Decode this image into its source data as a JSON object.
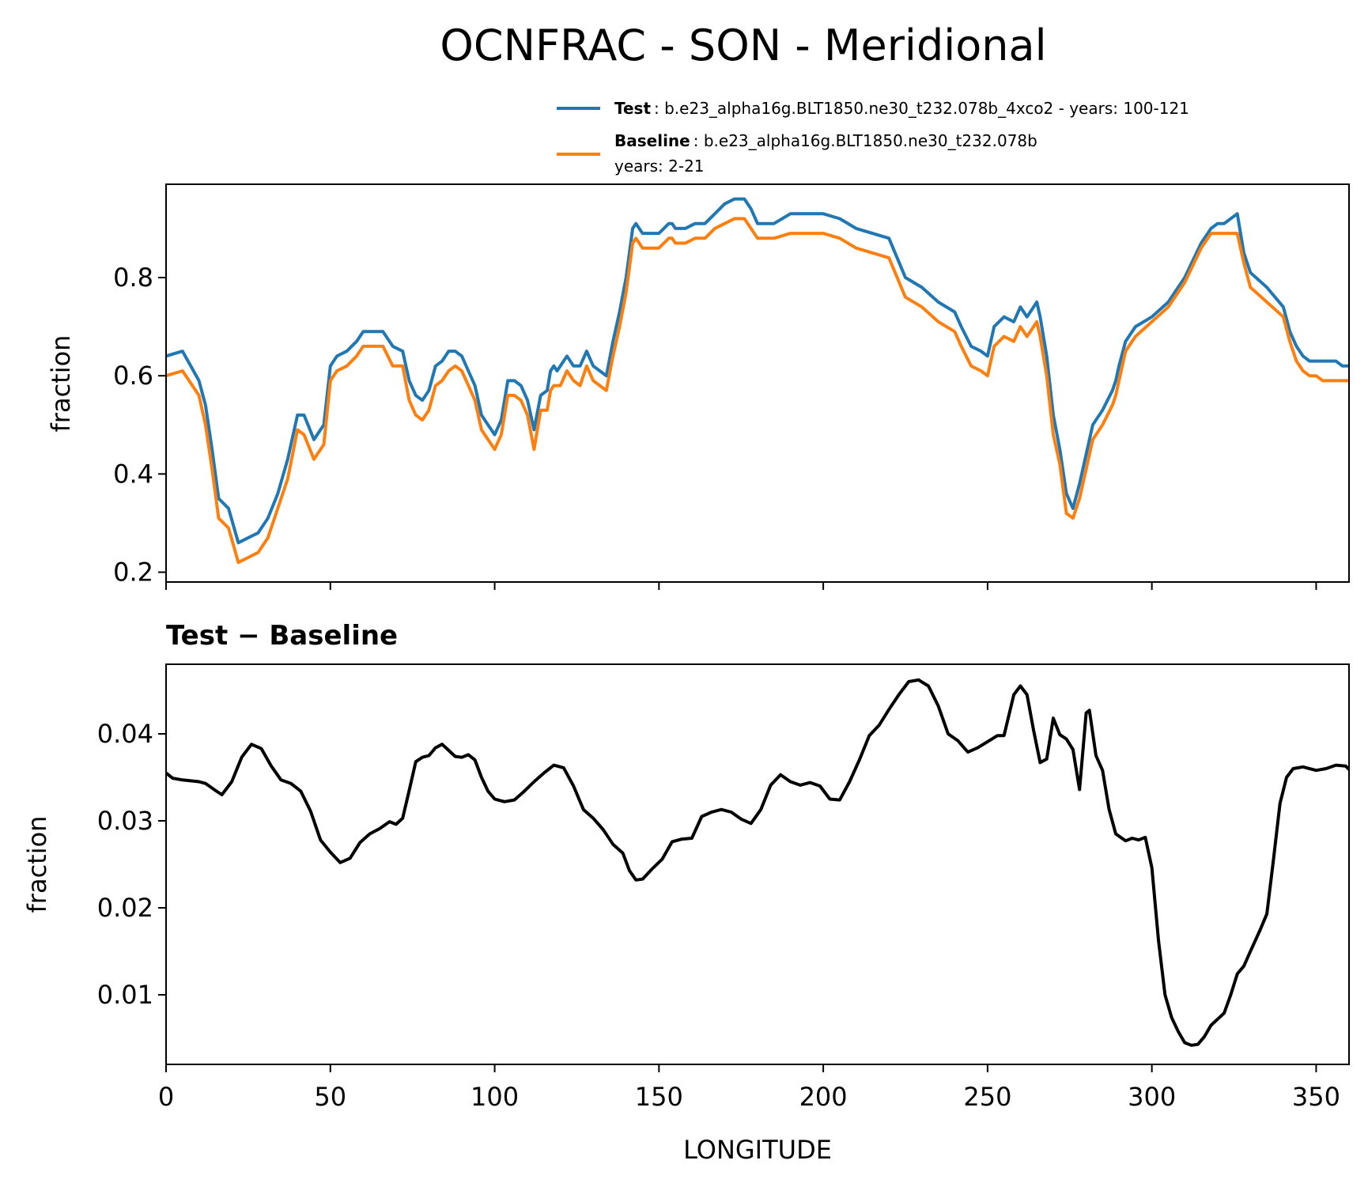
{
  "title": "OCNFRAC - SON - Meridional",
  "colors": {
    "test": "#1f77b4",
    "baseline": "#ff7f0e",
    "diff": "#000000"
  },
  "legend": {
    "test_bold": "Test",
    "test_text": ": b.e23_alpha16g.BLT1850.ne30_t232.078b_4xco2 - years: 100-121",
    "baseline_bold": "Baseline",
    "baseline_text": ": b.e23_alpha16g.BLT1850.ne30_t232.078b",
    "baseline_text2": "years: 2-21"
  },
  "top": {
    "ylabel": "fraction"
  },
  "bottom": {
    "title": "Test − Baseline",
    "ylabel": "fraction",
    "xlabel": "LONGITUDE"
  },
  "chart_data": [
    {
      "type": "line",
      "title": "",
      "ylabel": "fraction",
      "xlim": [
        0,
        360
      ],
      "ylim": [
        0.18,
        0.99
      ],
      "yticks": [
        0.2,
        0.4,
        0.6,
        0.8
      ],
      "xticks": [
        0,
        50,
        100,
        150,
        200,
        250,
        300,
        350
      ],
      "x": [
        0,
        5,
        10,
        12,
        14,
        16,
        19,
        22,
        25,
        28,
        31,
        34,
        37,
        40,
        42,
        45,
        48,
        50,
        52,
        55,
        58,
        60,
        63,
        66,
        69,
        72,
        74,
        76,
        78,
        80,
        82,
        84,
        86,
        88,
        90,
        92,
        94,
        96,
        98,
        100,
        102,
        104,
        106,
        108,
        110,
        112,
        114,
        116,
        117,
        118,
        119,
        120,
        122,
        124,
        126,
        128,
        130,
        132,
        134,
        136,
        138,
        140,
        142,
        143,
        145,
        150,
        153,
        154,
        155,
        158,
        161,
        164,
        167,
        170,
        173,
        176,
        178,
        180,
        185,
        190,
        195,
        200,
        205,
        210,
        220,
        225,
        230,
        235,
        240,
        242,
        245,
        248,
        250,
        252,
        255,
        258,
        260,
        262,
        264,
        265,
        266,
        268,
        270,
        272,
        274,
        276,
        278,
        280,
        282,
        285,
        288,
        289,
        290,
        292,
        295,
        300,
        305,
        310,
        315,
        318,
        320,
        322,
        324,
        326,
        328,
        330,
        335,
        340,
        342,
        344,
        346,
        348,
        350,
        352,
        354,
        356,
        358,
        360
      ],
      "series": [
        {
          "name": "Test",
          "color": "#1f77b4",
          "values": [
            0.64,
            0.65,
            0.59,
            0.54,
            0.45,
            0.35,
            0.33,
            0.26,
            0.27,
            0.28,
            0.31,
            0.36,
            0.43,
            0.52,
            0.52,
            0.47,
            0.5,
            0.62,
            0.64,
            0.65,
            0.67,
            0.69,
            0.69,
            0.69,
            0.66,
            0.65,
            0.59,
            0.56,
            0.55,
            0.57,
            0.62,
            0.63,
            0.65,
            0.65,
            0.64,
            0.61,
            0.58,
            0.52,
            0.5,
            0.48,
            0.51,
            0.59,
            0.59,
            0.58,
            0.55,
            0.49,
            0.56,
            0.57,
            0.61,
            0.62,
            0.61,
            0.62,
            0.64,
            0.62,
            0.62,
            0.65,
            0.62,
            0.61,
            0.6,
            0.67,
            0.73,
            0.8,
            0.9,
            0.91,
            0.89,
            0.89,
            0.91,
            0.91,
            0.9,
            0.9,
            0.91,
            0.91,
            0.93,
            0.95,
            0.96,
            0.96,
            0.94,
            0.91,
            0.91,
            0.93,
            0.93,
            0.93,
            0.92,
            0.9,
            0.88,
            0.8,
            0.78,
            0.75,
            0.73,
            0.7,
            0.66,
            0.65,
            0.64,
            0.7,
            0.72,
            0.71,
            0.74,
            0.72,
            0.74,
            0.75,
            0.72,
            0.64,
            0.52,
            0.45,
            0.36,
            0.33,
            0.38,
            0.44,
            0.5,
            0.53,
            0.57,
            0.59,
            0.62,
            0.67,
            0.7,
            0.72,
            0.75,
            0.8,
            0.87,
            0.9,
            0.91,
            0.91,
            0.92,
            0.93,
            0.85,
            0.81,
            0.78,
            0.74,
            0.69,
            0.66,
            0.64,
            0.63,
            0.63,
            0.63,
            0.63,
            0.63,
            0.62,
            0.62
          ]
        },
        {
          "name": "Baseline",
          "color": "#ff7f0e",
          "values": [
            0.6,
            0.61,
            0.56,
            0.5,
            0.41,
            0.31,
            0.29,
            0.22,
            0.23,
            0.24,
            0.27,
            0.33,
            0.39,
            0.49,
            0.48,
            0.43,
            0.46,
            0.59,
            0.61,
            0.62,
            0.64,
            0.66,
            0.66,
            0.66,
            0.62,
            0.62,
            0.55,
            0.52,
            0.51,
            0.53,
            0.58,
            0.59,
            0.61,
            0.62,
            0.61,
            0.58,
            0.55,
            0.49,
            0.47,
            0.45,
            0.48,
            0.56,
            0.56,
            0.55,
            0.52,
            0.45,
            0.53,
            0.53,
            0.57,
            0.58,
            0.58,
            0.58,
            0.61,
            0.59,
            0.58,
            0.62,
            0.59,
            0.58,
            0.57,
            0.64,
            0.7,
            0.77,
            0.87,
            0.88,
            0.86,
            0.86,
            0.88,
            0.88,
            0.87,
            0.87,
            0.88,
            0.88,
            0.9,
            0.91,
            0.92,
            0.92,
            0.9,
            0.88,
            0.88,
            0.89,
            0.89,
            0.89,
            0.88,
            0.86,
            0.84,
            0.76,
            0.74,
            0.71,
            0.69,
            0.66,
            0.62,
            0.61,
            0.6,
            0.66,
            0.68,
            0.67,
            0.7,
            0.68,
            0.7,
            0.71,
            0.68,
            0.6,
            0.48,
            0.42,
            0.32,
            0.31,
            0.35,
            0.41,
            0.47,
            0.5,
            0.54,
            0.56,
            0.59,
            0.65,
            0.68,
            0.71,
            0.74,
            0.79,
            0.86,
            0.89,
            0.89,
            0.89,
            0.89,
            0.89,
            0.83,
            0.78,
            0.75,
            0.72,
            0.67,
            0.63,
            0.61,
            0.6,
            0.6,
            0.59,
            0.59,
            0.59,
            0.59,
            0.59
          ]
        }
      ],
      "legend": "top-right"
    },
    {
      "type": "line",
      "title": "Test − Baseline",
      "xlabel": "LONGITUDE",
      "ylabel": "fraction",
      "xlim": [
        0,
        360
      ],
      "ylim": [
        0.002,
        0.048
      ],
      "yticks": [
        0.01,
        0.02,
        0.03,
        0.04
      ],
      "xticks": [
        0,
        50,
        100,
        150,
        200,
        250,
        300,
        350
      ],
      "x": [
        0,
        2,
        5,
        10,
        12,
        15,
        17,
        20,
        23,
        26,
        29,
        32,
        35,
        38,
        41,
        44,
        47,
        50,
        53,
        56,
        59,
        62,
        65,
        68,
        70,
        72,
        74,
        76,
        78,
        80,
        82,
        84,
        86,
        88,
        90,
        92,
        94,
        96,
        98,
        100,
        103,
        106,
        109,
        112,
        115,
        118,
        121,
        124,
        127,
        130,
        133,
        136,
        139,
        141,
        143,
        145,
        148,
        151,
        154,
        157,
        160,
        163,
        166,
        169,
        172,
        175,
        178,
        181,
        184,
        187,
        190,
        193,
        196,
        199,
        202,
        205,
        208,
        211,
        214,
        217,
        220,
        223,
        226,
        229,
        232,
        235,
        238,
        241,
        244,
        247,
        250,
        253,
        255,
        258,
        260,
        262,
        264,
        266,
        268,
        270,
        272,
        274,
        276,
        278,
        280,
        281,
        283,
        285,
        287,
        289,
        292,
        294,
        296,
        298,
        300,
        302,
        304,
        306,
        308,
        310,
        312,
        314,
        316,
        318,
        320,
        322,
        324,
        326,
        328,
        330,
        333,
        335,
        337,
        339,
        341,
        343,
        346,
        350,
        353,
        356,
        359,
        360
      ],
      "series": [
        {
          "name": "Test − Baseline",
          "color": "#000000",
          "values": [
            0.0355,
            0.0349,
            0.0347,
            0.0345,
            0.0343,
            0.0335,
            0.033,
            0.0345,
            0.0373,
            0.0388,
            0.0383,
            0.0363,
            0.0347,
            0.0343,
            0.0334,
            0.0311,
            0.0278,
            0.0264,
            0.0252,
            0.0257,
            0.0275,
            0.0285,
            0.0291,
            0.0299,
            0.0296,
            0.0303,
            0.0335,
            0.0368,
            0.0373,
            0.0375,
            0.0384,
            0.0388,
            0.0381,
            0.0374,
            0.0373,
            0.0376,
            0.037,
            0.035,
            0.0334,
            0.0325,
            0.0322,
            0.0324,
            0.0334,
            0.0345,
            0.0355,
            0.0364,
            0.0361,
            0.034,
            0.0313,
            0.0303,
            0.029,
            0.0273,
            0.0263,
            0.0243,
            0.0232,
            0.0233,
            0.0245,
            0.0256,
            0.0276,
            0.0279,
            0.028,
            0.0305,
            0.031,
            0.0313,
            0.031,
            0.0302,
            0.0297,
            0.0313,
            0.0341,
            0.0353,
            0.0345,
            0.0341,
            0.0344,
            0.034,
            0.0325,
            0.0324,
            0.0345,
            0.037,
            0.0398,
            0.041,
            0.0428,
            0.0445,
            0.046,
            0.0462,
            0.0455,
            0.0432,
            0.04,
            0.0392,
            0.0379,
            0.0384,
            0.0391,
            0.0398,
            0.0398,
            0.0445,
            0.0455,
            0.0445,
            0.0404,
            0.0367,
            0.0371,
            0.0418,
            0.0399,
            0.0394,
            0.0382,
            0.0336,
            0.0424,
            0.0427,
            0.0375,
            0.0358,
            0.0313,
            0.0285,
            0.0277,
            0.028,
            0.0278,
            0.0281,
            0.0246,
            0.0163,
            0.01,
            0.0074,
            0.0058,
            0.0045,
            0.0042,
            0.0043,
            0.0052,
            0.0065,
            0.0072,
            0.0079,
            0.01,
            0.0124,
            0.0133,
            0.015,
            0.0175,
            0.0193,
            0.0255,
            0.032,
            0.035,
            0.036,
            0.0362,
            0.0358,
            0.036,
            0.0364,
            0.0363,
            0.0359
          ]
        }
      ]
    }
  ]
}
